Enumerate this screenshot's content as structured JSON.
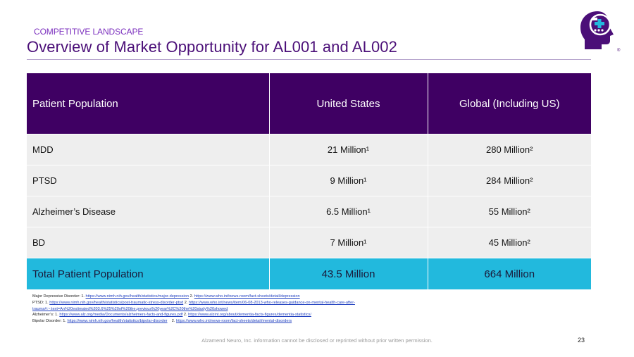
{
  "header": {
    "kicker": "COMPETITIVE LANDSCAPE",
    "title": "Overview of Market Opportunity for AL001 and AL002"
  },
  "logo": {
    "icon": "head-with-plus-icon",
    "mark": "®",
    "colors": {
      "primary": "#4b0f78",
      "accent": "#22b9dd"
    }
  },
  "table": {
    "headers": [
      "Patient Population",
      "United States",
      "Global (Including US)"
    ],
    "rows": [
      {
        "population": "MDD",
        "us": "21 Million¹",
        "global": "280 Million²"
      },
      {
        "population": "PTSD",
        "us": "9 Million¹",
        "global": "284 Million²"
      },
      {
        "population": "Alzheimer’s Disease",
        "us": "6.5 Million¹",
        "global": "55 Million²"
      },
      {
        "population": "BD",
        "us": "7 Million¹",
        "global": "45 Million²"
      }
    ],
    "total": {
      "population": "Total Patient Population",
      "us": "43.5 Million",
      "global": "664 Million"
    },
    "colors": {
      "header_bg": "#3f0063",
      "row_bg": "#eeeeee",
      "total_bg": "#22b9dd"
    }
  },
  "footnotes": {
    "mdd_prefix": "Major Depressive Disorder: 1. ",
    "mdd_link1": "https://www.nimh.nih.gov/health/statistics/major-depression",
    "mdd_mid": " 2. ",
    "mdd_link2": "https://www.who.int/news-room/fact-sheets/detail/depression",
    "ptsd_prefix": "PTSD: 1. ",
    "ptsd_link1": "https://www.nimh.nih.gov/health/statistics/post-traumatic-stress-disorder-ptsd",
    "ptsd_mid": "  2. ",
    "ptsd_link2a": "https://www.who.int/news/item/06-08-2013-who-releases-guidance-on-mental-health-care-after-",
    "ptsd_link2b": "trauma#:~:text=An%20estimated%203.6%25%20of%20the,previous%20year%2C%20the%20study%20showed",
    "alz_prefix": "Alzheimer’s: 1.  ",
    "alz_link1": "https://www.alz.org/media/Documents/alzheimers-facts-and-figures.pdf",
    "alz_mid": "  2. ",
    "alz_link2": "https://www.alzint.org/about/dementia-facts-figures/dementia-statistics/",
    "bd_prefix": "Bipolar Disorder: 1. ",
    "bd_link1": "https://www.nimh.nih.gov/health/statistics/bipolar-disorder",
    "bd_mid": "    2. ",
    "bd_link2": "https://www.who.int/news-room/fact-sheets/detail/mental-disorders"
  },
  "footer": {
    "disclaimer": "Alzamend Neuro, Inc. information cannot be disclosed or reprinted without prior written permission.",
    "page_number": "23"
  }
}
